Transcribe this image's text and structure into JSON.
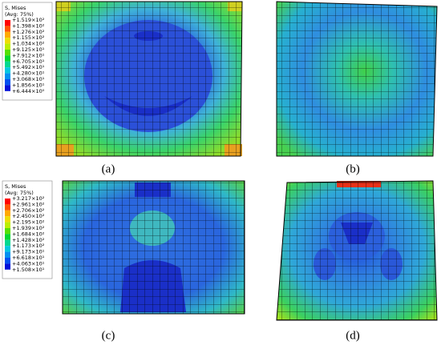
{
  "legends": [
    {
      "title": "S, Mises",
      "subtitle": "(Avg: 75%)",
      "values": [
        "+1.519×10²",
        "+1.398×10²",
        "+1.276×10²",
        "+1.155×10²",
        "+1.034×10²",
        "+9.125×10¹",
        "+7.912×10¹",
        "+6.705×10¹",
        "+5.492×10¹",
        "+4.280×10¹",
        "+3.068×10¹",
        "+1.856×10¹",
        "+6.444×10⁰"
      ]
    },
    {
      "title": "S, Mises",
      "subtitle": "(Avg: 75%)",
      "values": [
        "+3.217×10²",
        "+2.961×10²",
        "+2.706×10²",
        "+2.450×10²",
        "+2.195×10²",
        "+1.939×10²",
        "+1.684×10²",
        "+1.428×10²",
        "+1.173×10²",
        "+9.173×10¹",
        "+6.618×10¹",
        "+4.063×10¹",
        "+1.508×10¹"
      ]
    }
  ],
  "captions": [
    "(a)",
    "(b)",
    "(c)",
    "(d)"
  ]
}
